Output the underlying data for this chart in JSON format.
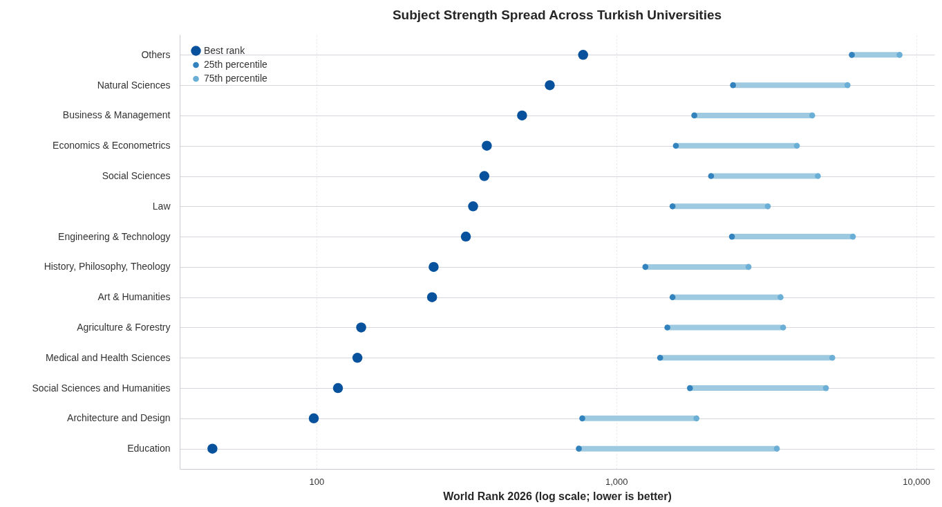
{
  "chart_data": {
    "type": "scatter",
    "title": "Subject Strength Spread Across Turkish Universities",
    "xlabel": "World Rank 2026 (log scale; lower is better)",
    "orientation": "horizontal",
    "categories": [
      "Others",
      "Natural Sciences",
      "Business & Management",
      "Economics & Econometrics",
      "Social Sciences",
      "Law",
      "Engineering & Technology",
      "History, Philosophy, Theology",
      "Art & Humanities",
      "Agriculture & Forestry",
      "Medical and Health Sciences",
      "Social Sciences and Humanities",
      "Architecture and Design",
      "Education"
    ],
    "series": [
      {
        "type": "bar",
        "color": "#9ecae1",
        "base": [
          6100,
          2450,
          1820,
          1580,
          2070,
          1540,
          2430,
          1250,
          1540,
          1480,
          1400,
          1760,
          770,
          750
        ],
        "values": [
          2700,
          3450,
          2680,
          2420,
          2630,
          1660,
          3720,
          1510,
          1990,
          2120,
          3850,
          3240,
          1080,
          2680
        ]
      },
      {
        "name": "Best rank",
        "color": "#08519c",
        "values": [
          775,
          600,
          485,
          370,
          363,
          333,
          315,
          246,
          243,
          141,
          137,
          118,
          98,
          45
        ]
      },
      {
        "name": "25th percentile",
        "color": "#3182bd",
        "values": [
          6100,
          2450,
          1820,
          1580,
          2070,
          1540,
          2430,
          1250,
          1540,
          1480,
          1400,
          1760,
          770,
          750
        ]
      },
      {
        "name": "75th percentile",
        "color": "#6baed6",
        "values": [
          8800,
          5900,
          4500,
          4000,
          4700,
          3200,
          6150,
          2760,
          3530,
          3600,
          5250,
          5000,
          1850,
          3430
        ]
      }
    ],
    "xlim": [
      35,
      11500
    ],
    "xticks": [
      100,
      {
        "value": 1000,
        "label": "1,000"
      },
      {
        "value": 10000,
        "label": "10,000"
      }
    ],
    "log": "x",
    "grid": true,
    "legend": "top left",
    "marker": "circle"
  }
}
